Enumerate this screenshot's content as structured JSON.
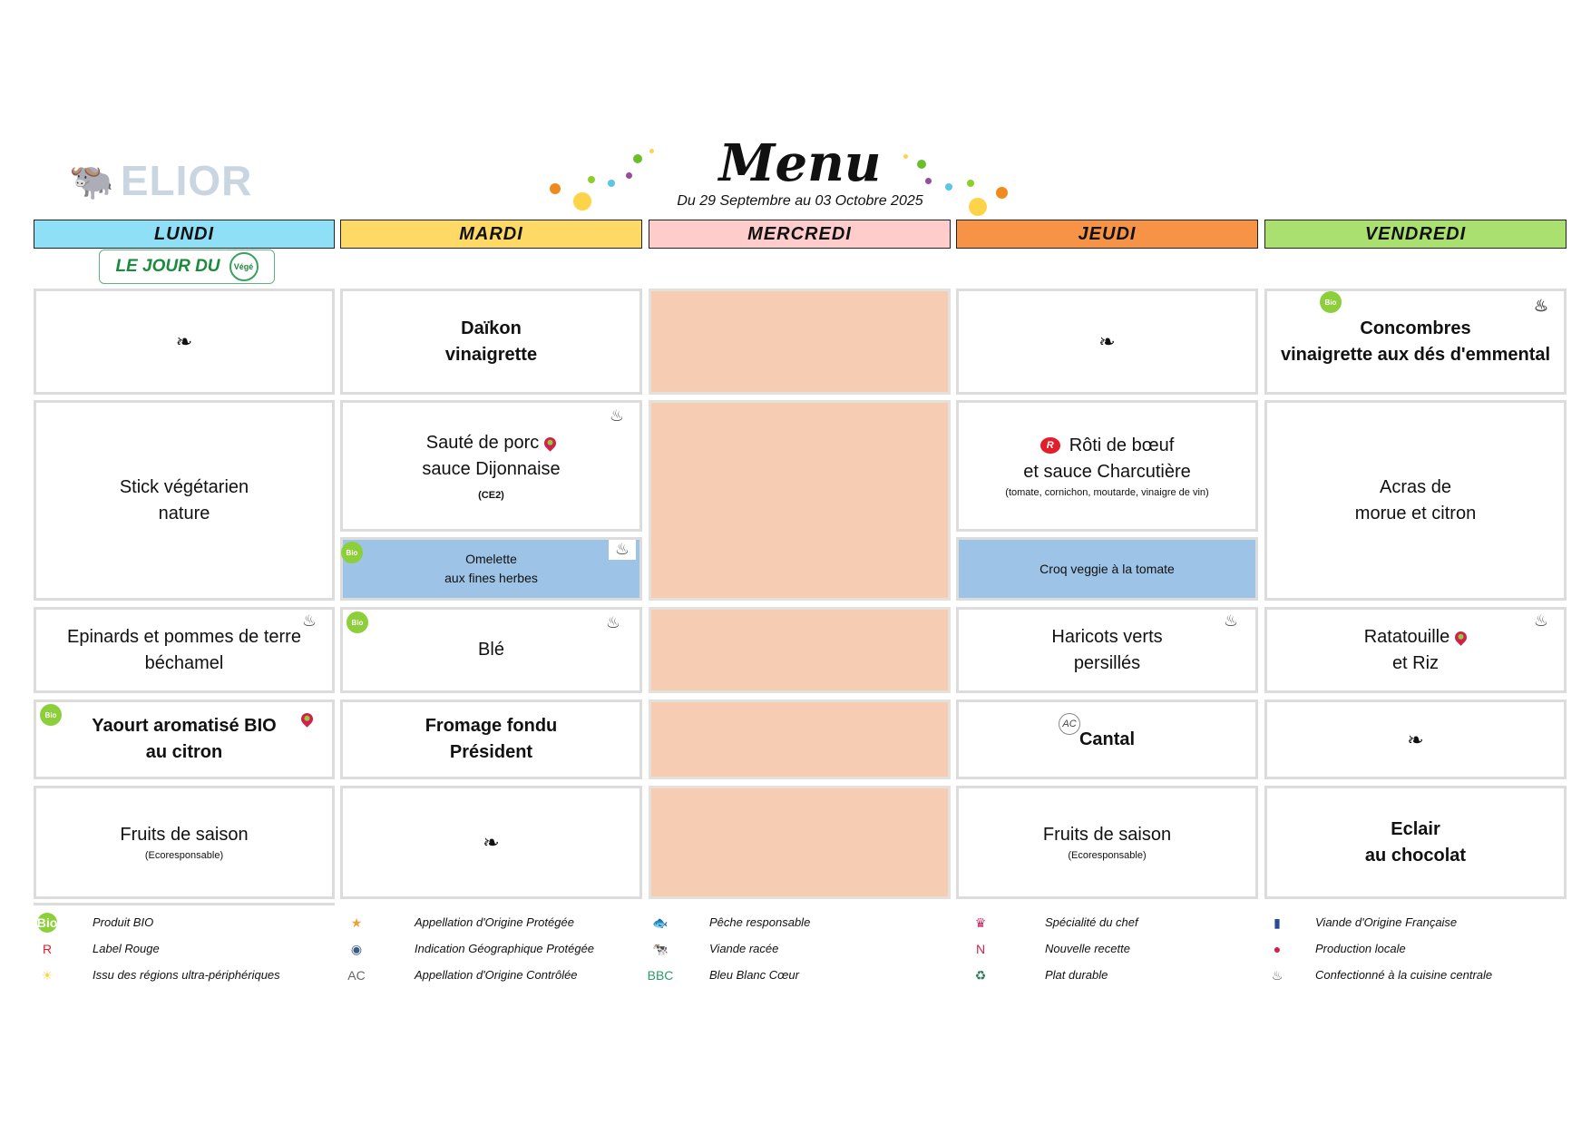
{
  "logo": "ELIOR",
  "header": {
    "title": "Menu",
    "subtitle": "Du 29 Septembre au 03 Octobre 2025"
  },
  "badge": {
    "text": "LE JOUR DU",
    "seal": "Végé"
  },
  "days": [
    {
      "label": "LUNDI",
      "color": "#8fe0f7"
    },
    {
      "label": "MARDI",
      "color": "#ffd966"
    },
    {
      "label": "MERCREDI",
      "color": "#ffcccc"
    },
    {
      "label": "JEUDI",
      "color": "#f79347"
    },
    {
      "label": "VENDREDI",
      "color": "#a9e070"
    }
  ],
  "menu": {
    "lundi": {
      "dessert_note": "(Ecoresponsable)",
      "main": "Stick végétarien",
      "main2": "nature",
      "side": "Epinards et pommes de terre",
      "side2": "béchamel",
      "dairy": "Yaourt aromatisé BIO",
      "dairy2": "au citron",
      "dessert": "Fruits de saison"
    },
    "mardi": {
      "starter": "Daïkon",
      "starter2": "vinaigrette",
      "main": "Sauté de porc",
      "main2": "sauce Dijonnaise",
      "main_note": "(CE2)",
      "alt": "Omelette",
      "alt2": "aux fines herbes",
      "side": "Blé",
      "dairy": "Fromage fondu",
      "dairy2": "Président"
    },
    "jeudi": {
      "main": "Rôti de bœuf",
      "main2": "et sauce Charcutière",
      "main_note": "(tomate, cornichon, moutarde, vinaigre de vin)",
      "alt": "Croq veggie à la tomate",
      "side": "Haricots verts",
      "side2": "persillés",
      "dairy": "Cantal",
      "dessert": "Fruits de saison",
      "dessert_note": "(Ecoresponsable)"
    },
    "vendredi": {
      "starter": "Concombres",
      "starter2": "vinaigrette aux dés d'emmental",
      "main": "Acras de",
      "main2": "morue et citron",
      "side": "Ratatouille",
      "side2": "et Riz",
      "dessert": "Eclair",
      "dessert2": "au chocolat"
    }
  },
  "icons": {
    "bio": "Bio",
    "label_rouge": "R",
    "chef_hat": "chef-hat-icon",
    "local": "pin-icon",
    "aoc": "AC",
    "ornament": "❧"
  },
  "legend": [
    [
      "Produit BIO",
      "Label Rouge",
      "Issu des régions ultra-périphériques"
    ],
    [
      "Appellation d'Origine Protégée",
      "Indication Géographique Protégée",
      "Appellation d'Origine Contrôlée"
    ],
    [
      "Pêche responsable",
      "Viande racée",
      "Bleu Blanc Cœur"
    ],
    [
      "Spécialité du chef",
      "Nouvelle recette",
      "Plat durable"
    ],
    [
      "Viande d'Origine Française",
      "Production locale",
      "Confectionné à la cuisine centrale"
    ]
  ],
  "legend_icons": [
    [
      "Bio",
      "R",
      "☀"
    ],
    [
      "★",
      "◉",
      "AC"
    ],
    [
      "🐟",
      "🐄",
      "BBC"
    ],
    [
      "♛",
      "N",
      "♻"
    ],
    [
      "▮",
      "●",
      "♨"
    ]
  ]
}
